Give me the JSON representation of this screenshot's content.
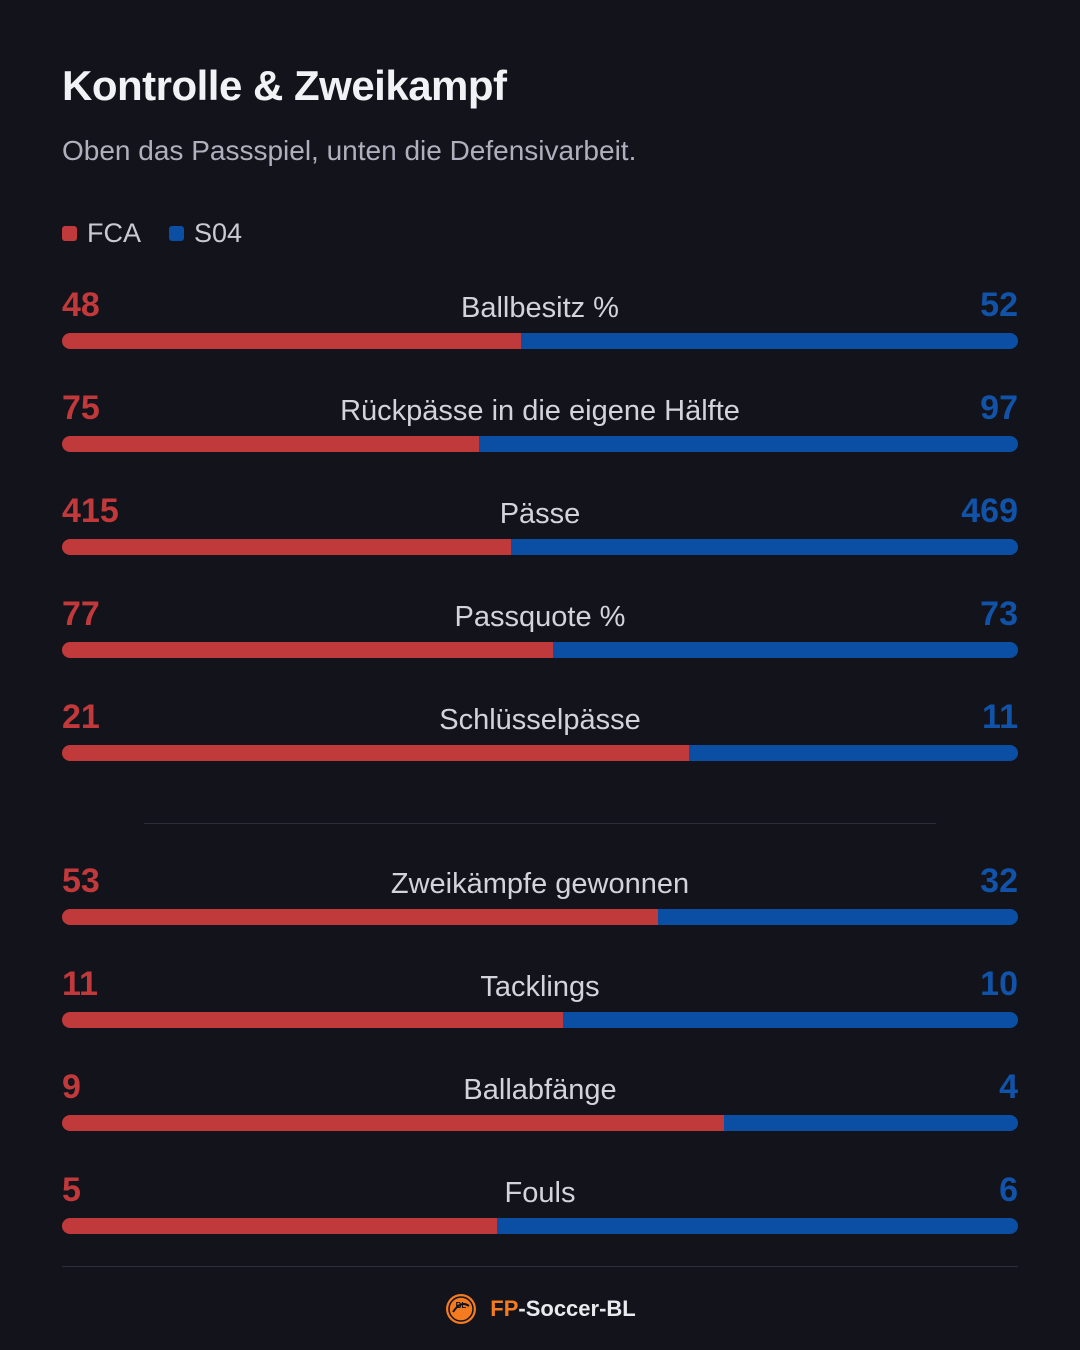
{
  "title": "Kontrolle & Zweikampf",
  "subtitle": "Oben das Passspiel, unten die Defensivarbeit.",
  "legend": [
    {
      "label": "FCA",
      "color": "#c0393b"
    },
    {
      "label": "S04",
      "color": "#0a4fa3"
    }
  ],
  "colors": {
    "home": "#c0393b",
    "away": "#0a4fa3",
    "home_text": "#c2393b",
    "away_text": "#1153a8"
  },
  "chart_data": {
    "type": "bar",
    "orientation": "horizontal-stacked-comparison",
    "series": [
      {
        "name": "FCA",
        "color": "#c0393b"
      },
      {
        "name": "S04",
        "color": "#0a4fa3"
      }
    ],
    "groups": [
      {
        "section": "passing",
        "stats": [
          {
            "label": "Ballbesitz %",
            "home": 48,
            "away": 52
          },
          {
            "label": "Rückpässe in die eigene Hälfte",
            "home": 75,
            "away": 97
          },
          {
            "label": "Pässe",
            "home": 415,
            "away": 469
          },
          {
            "label": "Passquote %",
            "home": 77,
            "away": 73
          },
          {
            "label": "Schlüsselpässe",
            "home": 21,
            "away": 11
          }
        ]
      },
      {
        "section": "defense",
        "stats": [
          {
            "label": "Zweikämpfe gewonnen",
            "home": 53,
            "away": 32
          },
          {
            "label": "Tacklings",
            "home": 11,
            "away": 10
          },
          {
            "label": "Ballabfänge",
            "home": 9,
            "away": 4
          },
          {
            "label": "Fouls",
            "home": 5,
            "away": 6
          }
        ]
      }
    ]
  },
  "footer": {
    "brand_prefix": "FP",
    "brand_suffix": "-Soccer-BL",
    "logo_text": "BL",
    "icon": "soccer-ball-logo-icon"
  }
}
